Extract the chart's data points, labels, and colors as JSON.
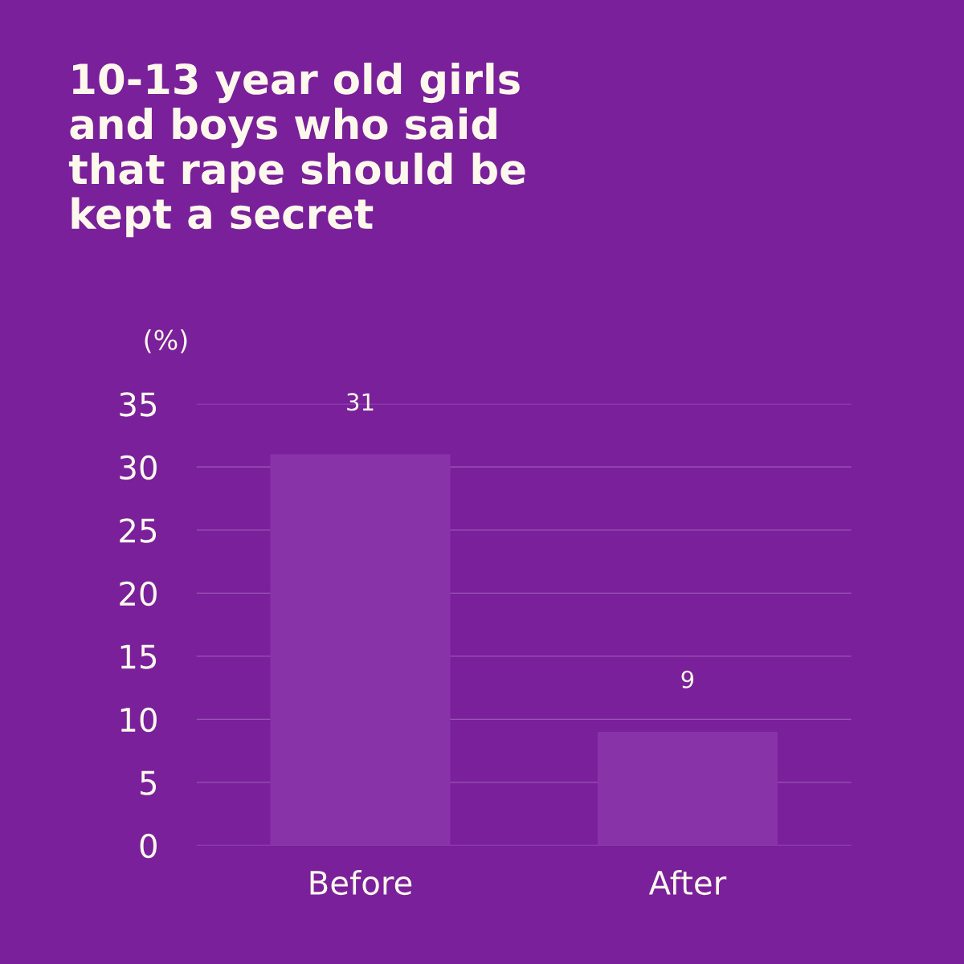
{
  "chart_data": {
    "type": "bar",
    "title": "10-13 year old girls\nand boys who said\nthat rape should be\nkept a secret",
    "ylabel": "(%)",
    "categories": [
      "Before",
      "After"
    ],
    "values": [
      31,
      9
    ],
    "color": "#8833a8",
    "ylim": [
      0,
      35
    ],
    "yticks": [
      0,
      5,
      10,
      15,
      20,
      25,
      30,
      35
    ],
    "grid": "y",
    "data_labels": true
  }
}
